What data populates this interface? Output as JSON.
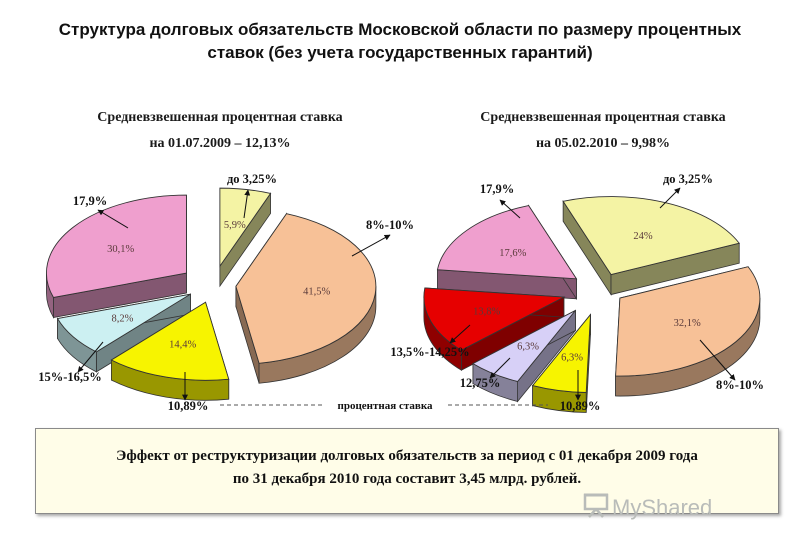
{
  "title_lines": [
    "Структура долговых обязательств Московской области по размеру процентных",
    "ставок (без учета государственных гарантий)"
  ],
  "axis_label": "процентная ставка",
  "effect_lines": [
    "Эффект от реструктуризации долговых обязательств за период с 01 декабря 2009 года",
    "по 31 декабря 2010 года составит 3,45 млрд. рублей."
  ],
  "watermark": "MyShared",
  "colors": {
    "pink": "#ef9fce",
    "yellow_light": "#f4f3a4",
    "peach": "#f7c197",
    "yellow": "#f7f400",
    "light_blue": "#ccf0f2",
    "red": "#e60000",
    "lavender": "#d7d0f7"
  },
  "chart_data": [
    {
      "type": "pie",
      "subtitle_line1": "Средневзвешенная процентная ставка",
      "subtitle_line2": "на 01.07.2009 – 12,13%",
      "slices": [
        {
          "label": "до 3,25%",
          "value": 5.9,
          "text": "5,9%",
          "color": "#f4f3a4"
        },
        {
          "label": "8%-10%",
          "value": 41.5,
          "text": "41,5%",
          "color": "#f7c197"
        },
        {
          "label": "10,89%",
          "value": 14.4,
          "text": "14,4%",
          "color": "#f7f400"
        },
        {
          "label": "15%-16,5%",
          "value": 8.2,
          "text": "8,2%",
          "color": "#ccf0f2"
        },
        {
          "label": "17,9%",
          "value": 30.1,
          "text": "30,1%",
          "color": "#ef9fce"
        }
      ]
    },
    {
      "type": "pie",
      "subtitle_line1": "Средневзвешенная процентная ставка",
      "subtitle_line2": "на 05.02.2010 – 9,98%",
      "slices": [
        {
          "label": "до 3,25%",
          "value": 24,
          "text": "24%",
          "color": "#f4f3a4"
        },
        {
          "label": "8%-10%",
          "value": 32.1,
          "text": "32,1%",
          "color": "#f7c197"
        },
        {
          "label": "10,89%",
          "value": 6.3,
          "text": "6,3%",
          "color": "#f7f400"
        },
        {
          "label": "12,75%",
          "value": 6.3,
          "text": "6,3%",
          "color": "#d7d0f7"
        },
        {
          "label": "13,5%-14,25%",
          "value": 13.8,
          "text": "13,8%",
          "color": "#e60000"
        },
        {
          "label": "17,9%",
          "value": 17.6,
          "text": "17,6%",
          "color": "#ef9fce"
        }
      ]
    }
  ]
}
